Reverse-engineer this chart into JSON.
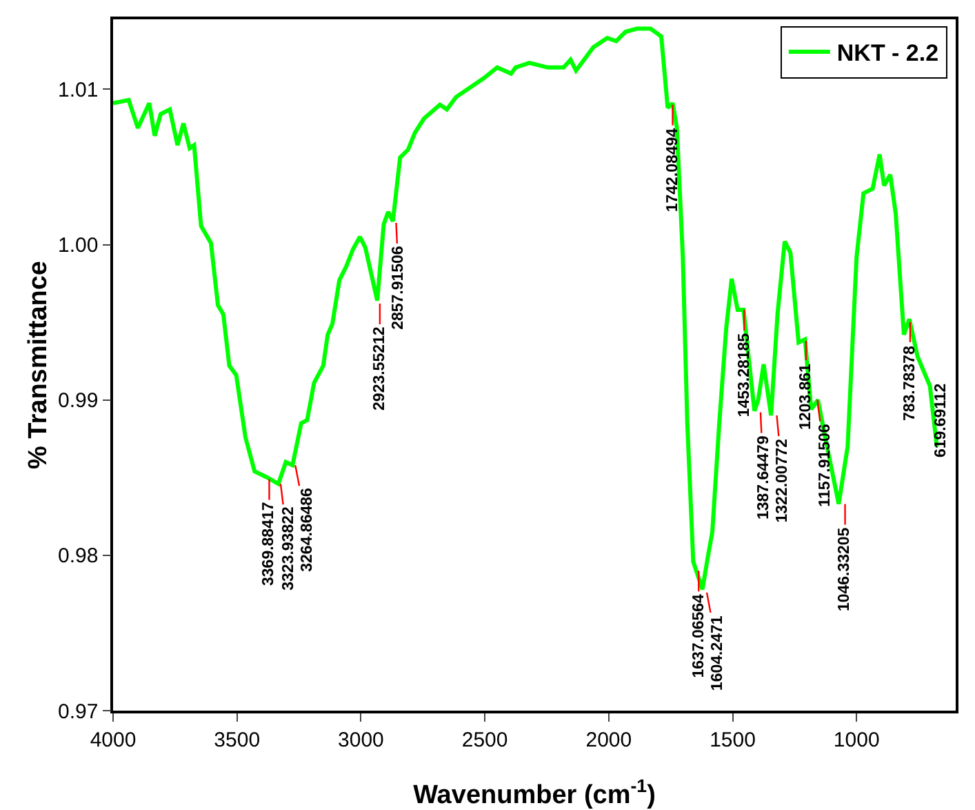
{
  "chart_data": {
    "type": "line",
    "xlabel": "Wavenumber (cm$^{-1}$)",
    "ylabel": "% Transmittance",
    "x": [
      4000,
      3937,
      3900,
      3854,
      3832,
      3808,
      3771,
      3740,
      3716,
      3691,
      3673,
      3645,
      3605,
      3577,
      3555,
      3531,
      3503,
      3466,
      3429,
      3377,
      3333,
      3303,
      3276,
      3241,
      3217,
      3189,
      3152,
      3134,
      3115,
      3087,
      3059,
      3032,
      3004,
      2982,
      2934,
      2908,
      2890,
      2871,
      2842,
      2810,
      2782,
      2746,
      2681,
      2653,
      2616,
      2560,
      2505,
      2450,
      2394,
      2376,
      2320,
      2246,
      2182,
      2154,
      2132,
      2062,
      2006,
      1970,
      1932,
      1886,
      1831,
      1788,
      1762,
      1742,
      1725,
      1701,
      1683,
      1659,
      1622,
      1600,
      1582,
      1554,
      1526,
      1504,
      1480,
      1456,
      1434,
      1412,
      1397,
      1375,
      1345,
      1319,
      1290,
      1267,
      1234,
      1208,
      1183,
      1156,
      1119,
      1072,
      1036,
      1000,
      972,
      935,
      907,
      889,
      864,
      842,
      809,
      787,
      754,
      704,
      676
    ],
    "series": [
      {
        "name": "NKT - 2.2",
        "color": "#00ff00",
        "values": [
          1.0091,
          1.0093,
          1.0075,
          1.0091,
          1.007,
          1.0084,
          1.0087,
          1.0064,
          1.0078,
          1.0062,
          1.0064,
          1.0012,
          1.0001,
          0.9961,
          0.9955,
          0.9922,
          0.9916,
          0.9876,
          0.9854,
          0.985,
          0.9846,
          0.986,
          0.9858,
          0.9885,
          0.9887,
          0.9911,
          0.9922,
          0.9942,
          0.9949,
          0.9977,
          0.9986,
          0.9997,
          1.0005,
          0.9998,
          0.9964,
          1.0013,
          1.0021,
          1.0015,
          1.0056,
          1.0061,
          1.0072,
          1.0081,
          1.009,
          1.0087,
          1.0095,
          1.0101,
          1.0107,
          1.0114,
          1.011,
          1.0114,
          1.0117,
          1.0114,
          1.0114,
          1.0119,
          1.0112,
          1.0127,
          1.0133,
          1.0131,
          1.0137,
          1.0139,
          1.0139,
          1.0134,
          1.0088,
          1.0091,
          1.0075,
          0.9992,
          0.9885,
          0.9796,
          0.9778,
          0.9799,
          0.9815,
          0.9885,
          0.9946,
          0.9978,
          0.9958,
          0.9958,
          0.9925,
          0.9893,
          0.99,
          0.9923,
          0.989,
          0.9955,
          1.0002,
          0.9995,
          0.9937,
          0.9939,
          0.9894,
          0.99,
          0.987,
          0.9833,
          0.987,
          0.9992,
          1.0033,
          1.0036,
          1.0058,
          1.0038,
          1.0045,
          1.002,
          0.9942,
          0.9952,
          0.9928,
          0.9909,
          0.987
        ]
      }
    ],
    "xlim": [
      4000,
      600
    ],
    "xticks": [
      4000,
      3500,
      3000,
      2500,
      2000,
      1500,
      1000
    ],
    "ylim": [
      0.97,
      1.0145
    ],
    "yticks": [
      0.97,
      0.98,
      0.99,
      {
        "value": 1,
        "label": "1.00"
      },
      1.01
    ],
    "grid": false,
    "legend": "top right",
    "marker": "none",
    "line_style": "solid",
    "annotations": [
      {
        "text": "3369.88417",
        "x": 3369.88417,
        "y": 0.9849
      },
      {
        "text": "3323.93822",
        "x": 3323.93822,
        "y": 0.9846
      },
      {
        "text": "3264.86486",
        "x": 3264.86486,
        "y": 0.9858
      },
      {
        "text": "2923.55212",
        "x": 2923.55212,
        "y": 0.9962
      },
      {
        "text": "2857.91506",
        "x": 2857.91506,
        "y": 1.0014
      },
      {
        "text": "1742.08494",
        "x": 1742.08494,
        "y": 1.009
      },
      {
        "text": "1637.06564",
        "x": 1637.06564,
        "y": 0.979
      },
      {
        "text": "1604.2471",
        "x": 1604.2471,
        "y": 0.9776
      },
      {
        "text": "1453.28185",
        "x": 1453.28185,
        "y": 0.9958
      },
      {
        "text": "1387.64479",
        "x": 1387.64479,
        "y": 0.9892
      },
      {
        "text": "1322.00772",
        "x": 1322.00772,
        "y": 0.989
      },
      {
        "text": "1203.861",
        "x": 1203.861,
        "y": 0.9938
      },
      {
        "text": "1157.91506",
        "x": 1157.91506,
        "y": 0.99
      },
      {
        "text": "1046.33205",
        "x": 1046.33205,
        "y": 0.9833
      },
      {
        "text": "783.78378",
        "x": 783.78378,
        "y": 0.995
      },
      "619.69112"
    ]
  }
}
